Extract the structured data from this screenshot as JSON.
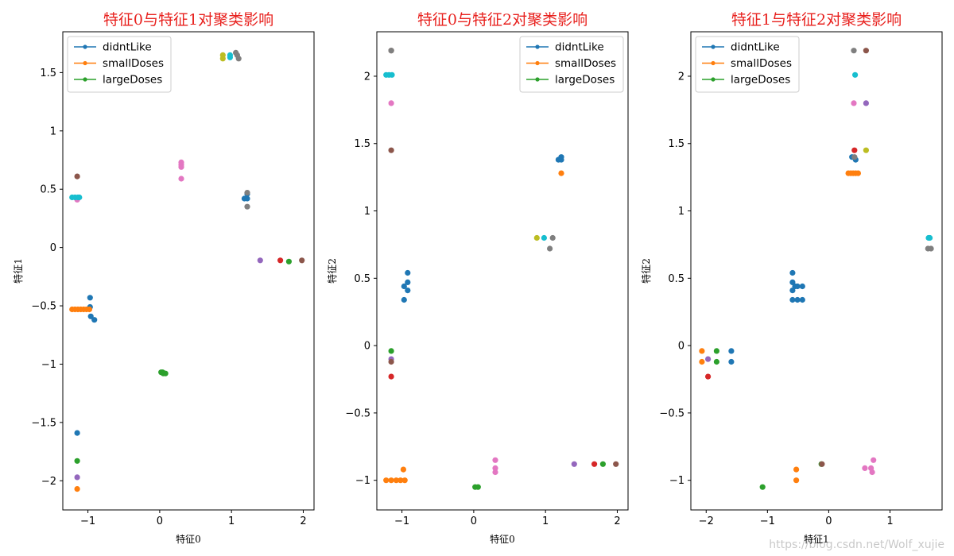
{
  "watermark": "https://blog.csdn.net/Wolf_xujie",
  "legend_entries": [
    {
      "label": "didntLike",
      "color": "#1f77b4"
    },
    {
      "label": "smallDoses",
      "color": "#ff7f0e"
    },
    {
      "label": "largeDoses",
      "color": "#2ca02c"
    }
  ],
  "palette": [
    "#1f77b4",
    "#ff7f0e",
    "#2ca02c",
    "#d62728",
    "#9467bd",
    "#8c564b",
    "#e377c2",
    "#7f7f7f",
    "#bcbd22",
    "#17becf"
  ],
  "chart_data": [
    {
      "type": "scatter",
      "title": "特征0与特征1对聚类影响",
      "xlabel": "特征0",
      "ylabel": "特征1",
      "xlim": [
        -1.35,
        2.15
      ],
      "ylim": [
        -2.25,
        1.85
      ],
      "xticks": [
        -1,
        0,
        1,
        2
      ],
      "yticks": [
        -2.0,
        -1.5,
        -1.0,
        -0.5,
        0.0,
        0.5,
        1.0,
        1.5
      ],
      "legend_position": "top-left",
      "clusters": [
        {
          "color": "#1f77b4",
          "points": [
            [
              -0.97,
              -0.43
            ],
            [
              -0.97,
              -0.51
            ],
            [
              -0.96,
              -0.59
            ],
            [
              -0.91,
              -0.62
            ],
            [
              -1.15,
              -1.59
            ],
            [
              1.18,
              0.42
            ],
            [
              1.22,
              0.46
            ],
            [
              1.22,
              0.42
            ]
          ]
        },
        {
          "color": "#ff7f0e",
          "points": [
            [
              -1.22,
              -0.53
            ],
            [
              -1.18,
              -0.53
            ],
            [
              -1.14,
              -0.53
            ],
            [
              -1.1,
              -0.53
            ],
            [
              -1.06,
              -0.53
            ],
            [
              -1.02,
              -0.53
            ],
            [
              -0.98,
              -0.53
            ],
            [
              -1.15,
              -2.07
            ]
          ]
        },
        {
          "color": "#2ca02c",
          "points": [
            [
              0.02,
              -1.07
            ],
            [
              0.05,
              -1.08
            ],
            [
              0.08,
              -1.08
            ],
            [
              0.04,
              -1.07
            ],
            [
              1.8,
              -0.12
            ],
            [
              -1.15,
              -1.83
            ]
          ]
        },
        {
          "color": "#d62728",
          "points": [
            [
              1.68,
              -0.11
            ]
          ]
        },
        {
          "color": "#9467bd",
          "points": [
            [
              1.4,
              -0.11
            ],
            [
              -1.15,
              -1.97
            ]
          ]
        },
        {
          "color": "#8c564b",
          "points": [
            [
              1.98,
              -0.11
            ],
            [
              -1.15,
              0.61
            ]
          ]
        },
        {
          "color": "#e377c2",
          "points": [
            [
              0.3,
              0.73
            ],
            [
              0.3,
              0.71
            ],
            [
              0.3,
              0.69
            ],
            [
              0.3,
              0.59
            ],
            [
              -1.15,
              0.41
            ]
          ]
        },
        {
          "color": "#7f7f7f",
          "points": [
            [
              1.06,
              1.67
            ],
            [
              1.08,
              1.65
            ],
            [
              1.1,
              1.62
            ],
            [
              1.22,
              0.35
            ],
            [
              1.22,
              0.47
            ]
          ]
        },
        {
          "color": "#bcbd22",
          "points": [
            [
              0.88,
              1.65
            ],
            [
              0.88,
              1.62
            ]
          ]
        },
        {
          "color": "#17becf",
          "points": [
            [
              -1.22,
              0.43
            ],
            [
              -1.18,
              0.43
            ],
            [
              -1.14,
              0.43
            ],
            [
              -1.12,
              0.43
            ],
            [
              0.98,
              1.63
            ],
            [
              0.98,
              1.65
            ]
          ]
        }
      ]
    },
    {
      "type": "scatter",
      "title": "特征0与特征2对聚类影响",
      "xlabel": "特征0",
      "ylabel": "特征2",
      "xlim": [
        -1.35,
        2.15
      ],
      "ylim": [
        -1.22,
        2.33
      ],
      "xticks": [
        -1,
        0,
        1,
        2
      ],
      "yticks": [
        -1.0,
        -0.5,
        0.0,
        0.5,
        1.0,
        1.5,
        2.0
      ],
      "legend_position": "top-right",
      "clusters": [
        {
          "color": "#1f77b4",
          "points": [
            [
              -0.97,
              0.44
            ],
            [
              -0.97,
              0.34
            ],
            [
              -0.92,
              0.54
            ],
            [
              -0.92,
              0.47
            ],
            [
              -0.92,
              0.41
            ],
            [
              1.18,
              1.38
            ],
            [
              1.22,
              1.4
            ],
            [
              1.22,
              1.38
            ]
          ]
        },
        {
          "color": "#ff7f0e",
          "points": [
            [
              -1.22,
              -1.0
            ],
            [
              -1.15,
              -1.0
            ],
            [
              -1.08,
              -1.0
            ],
            [
              -1.02,
              -1.0
            ],
            [
              -0.96,
              -1.0
            ],
            [
              -0.98,
              -0.92
            ],
            [
              1.22,
              1.28
            ]
          ]
        },
        {
          "color": "#2ca02c",
          "points": [
            [
              0.02,
              -1.05
            ],
            [
              0.06,
              -1.05
            ],
            [
              -1.15,
              -0.04
            ],
            [
              1.8,
              -0.88
            ]
          ]
        },
        {
          "color": "#d62728",
          "points": [
            [
              1.68,
              -0.88
            ],
            [
              -1.15,
              -0.23
            ]
          ]
        },
        {
          "color": "#9467bd",
          "points": [
            [
              1.4,
              -0.88
            ],
            [
              -1.15,
              -0.1
            ]
          ]
        },
        {
          "color": "#8c564b",
          "points": [
            [
              1.98,
              -0.88
            ],
            [
              -1.15,
              2.19
            ],
            [
              -1.15,
              1.45
            ],
            [
              -1.15,
              -0.12
            ]
          ]
        },
        {
          "color": "#e377c2",
          "points": [
            [
              0.3,
              -0.85
            ],
            [
              0.3,
              -0.91
            ],
            [
              0.3,
              -0.94
            ],
            [
              -1.15,
              1.8
            ]
          ]
        },
        {
          "color": "#7f7f7f",
          "points": [
            [
              1.06,
              0.72
            ],
            [
              1.1,
              0.8
            ],
            [
              -1.15,
              2.19
            ]
          ]
        },
        {
          "color": "#bcbd22",
          "points": [
            [
              0.88,
              0.8
            ]
          ]
        },
        {
          "color": "#17becf",
          "points": [
            [
              -1.22,
              2.01
            ],
            [
              -1.18,
              2.01
            ],
            [
              -1.14,
              2.01
            ],
            [
              0.98,
              0.8
            ]
          ]
        }
      ]
    },
    {
      "type": "scatter",
      "title": "特征1与特征2对聚类影响",
      "xlabel": "特征1",
      "ylabel": "特征2",
      "xlim": [
        -2.25,
        1.85
      ],
      "ylim": [
        -1.22,
        2.33
      ],
      "xticks": [
        -2,
        -1,
        0,
        1
      ],
      "yticks": [
        -1.0,
        -0.5,
        0.0,
        0.5,
        1.0,
        1.5,
        2.0
      ],
      "legend_position": "top-left",
      "clusters": [
        {
          "color": "#1f77b4",
          "points": [
            [
              -0.59,
              0.54
            ],
            [
              -0.59,
              0.47
            ],
            [
              -0.59,
              0.41
            ],
            [
              -0.55,
              0.44
            ],
            [
              -0.51,
              0.44
            ],
            [
              -0.43,
              0.44
            ],
            [
              -0.59,
              0.34
            ],
            [
              -0.51,
              0.34
            ],
            [
              -0.43,
              0.34
            ],
            [
              -1.59,
              -0.04
            ],
            [
              -1.59,
              -0.12
            ],
            [
              0.38,
              1.4
            ],
            [
              0.44,
              1.38
            ]
          ]
        },
        {
          "color": "#ff7f0e",
          "points": [
            [
              -2.07,
              -0.04
            ],
            [
              -2.07,
              -0.12
            ],
            [
              0.32,
              1.28
            ],
            [
              0.36,
              1.28
            ],
            [
              0.4,
              1.28
            ],
            [
              0.44,
              1.28
            ],
            [
              0.48,
              1.28
            ],
            [
              -0.53,
              -0.92
            ],
            [
              -0.53,
              -1.0
            ]
          ]
        },
        {
          "color": "#2ca02c",
          "points": [
            [
              -1.83,
              -0.04
            ],
            [
              -1.83,
              -0.12
            ],
            [
              -1.08,
              -1.05
            ],
            [
              -0.12,
              -0.88
            ]
          ]
        },
        {
          "color": "#d62728",
          "points": [
            [
              -1.97,
              -0.23
            ],
            [
              0.42,
              1.45
            ]
          ]
        },
        {
          "color": "#9467bd",
          "points": [
            [
              -1.97,
              -0.1
            ],
            [
              0.61,
              1.8
            ]
          ]
        },
        {
          "color": "#8c564b",
          "points": [
            [
              0.61,
              2.19
            ],
            [
              -0.11,
              -0.88
            ]
          ]
        },
        {
          "color": "#e377c2",
          "points": [
            [
              0.41,
              1.8
            ],
            [
              0.73,
              -0.85
            ],
            [
              0.69,
              -0.91
            ],
            [
              0.71,
              -0.94
            ],
            [
              0.59,
              -0.91
            ]
          ]
        },
        {
          "color": "#7f7f7f",
          "points": [
            [
              0.41,
              2.19
            ],
            [
              1.62,
              0.72
            ],
            [
              1.67,
              0.72
            ],
            [
              0.42,
              1.4
            ]
          ]
        },
        {
          "color": "#bcbd22",
          "points": [
            [
              0.61,
              1.45
            ]
          ]
        },
        {
          "color": "#17becf",
          "points": [
            [
              0.43,
              2.01
            ],
            [
              1.63,
              0.8
            ],
            [
              1.65,
              0.8
            ]
          ]
        }
      ]
    }
  ]
}
